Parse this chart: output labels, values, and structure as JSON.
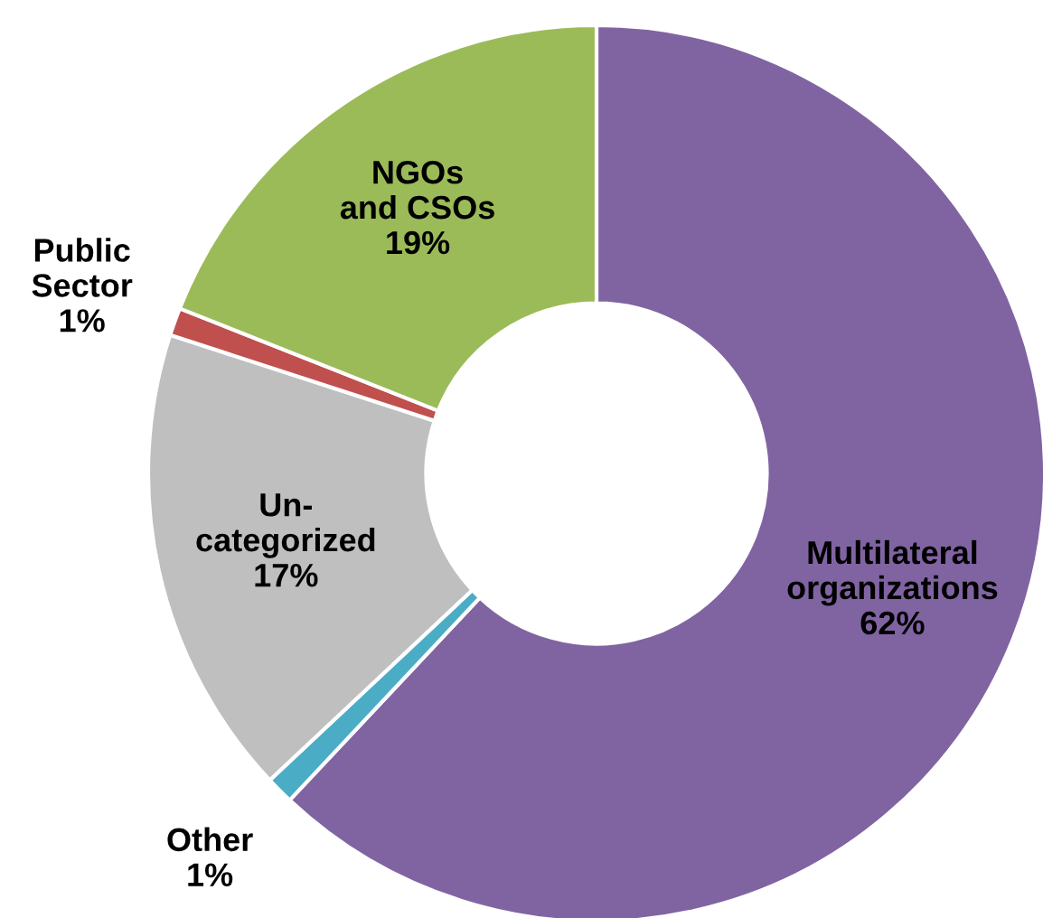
{
  "chart_data": {
    "type": "donut",
    "categories": [
      "Multilateral\norganizations",
      "Other",
      "Un-\ncategorized",
      "Public\nSector",
      "NGOs\nand CSOs"
    ],
    "values": [
      62,
      1,
      17,
      1,
      19
    ],
    "value_labels": [
      "62%",
      "1%",
      "17%",
      "1%",
      "19%"
    ],
    "colors": [
      "#8064a2",
      "#4bacc6",
      "#bfbfbf",
      "#c0504d",
      "#9bbb59"
    ],
    "legend": false
  }
}
